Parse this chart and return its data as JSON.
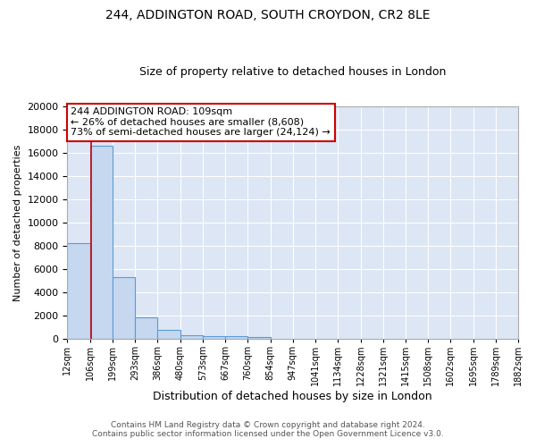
{
  "title_line1": "244, ADDINGTON ROAD, SOUTH CROYDON, CR2 8LE",
  "title_line2": "Size of property relative to detached houses in London",
  "xlabel": "Distribution of detached houses by size in London",
  "ylabel": "Number of detached properties",
  "bar_color": "#c5d8f0",
  "bar_edge_color": "#5b9bd5",
  "bg_color": "#dce6f5",
  "grid_color": "#ffffff",
  "bin_edges": [
    12,
    106,
    199,
    293,
    386,
    480,
    573,
    667,
    760,
    854,
    947,
    1041,
    1134,
    1228,
    1321,
    1415,
    1508,
    1602,
    1695,
    1789,
    1882
  ],
  "bar_heights": [
    8200,
    16600,
    5300,
    1850,
    750,
    280,
    220,
    200,
    170,
    0,
    0,
    0,
    0,
    0,
    0,
    0,
    0,
    0,
    0,
    0
  ],
  "property_size": 109,
  "annotation_text": "244 ADDINGTON ROAD: 109sqm\n← 26% of detached houses are smaller (8,608)\n73% of semi-detached houses are larger (24,124) →",
  "annotation_box_color": "#ffffff",
  "annotation_box_edge_color": "#cc0000",
  "vline_color": "#cc0000",
  "ylim": [
    0,
    20000
  ],
  "footnote1": "Contains HM Land Registry data © Crown copyright and database right 2024.",
  "footnote2": "Contains public sector information licensed under the Open Government Licence v3.0.",
  "tick_labels": [
    "12sqm",
    "106sqm",
    "199sqm",
    "293sqm",
    "386sqm",
    "480sqm",
    "573sqm",
    "667sqm",
    "760sqm",
    "854sqm",
    "947sqm",
    "1041sqm",
    "1134sqm",
    "1228sqm",
    "1321sqm",
    "1415sqm",
    "1508sqm",
    "1602sqm",
    "1695sqm",
    "1789sqm",
    "1882sqm"
  ],
  "fig_bg_color": "#ffffff",
  "title_fontsize": 10,
  "subtitle_fontsize": 9,
  "ylabel_fontsize": 8,
  "xlabel_fontsize": 9,
  "ytick_fontsize": 8,
  "xtick_fontsize": 7
}
